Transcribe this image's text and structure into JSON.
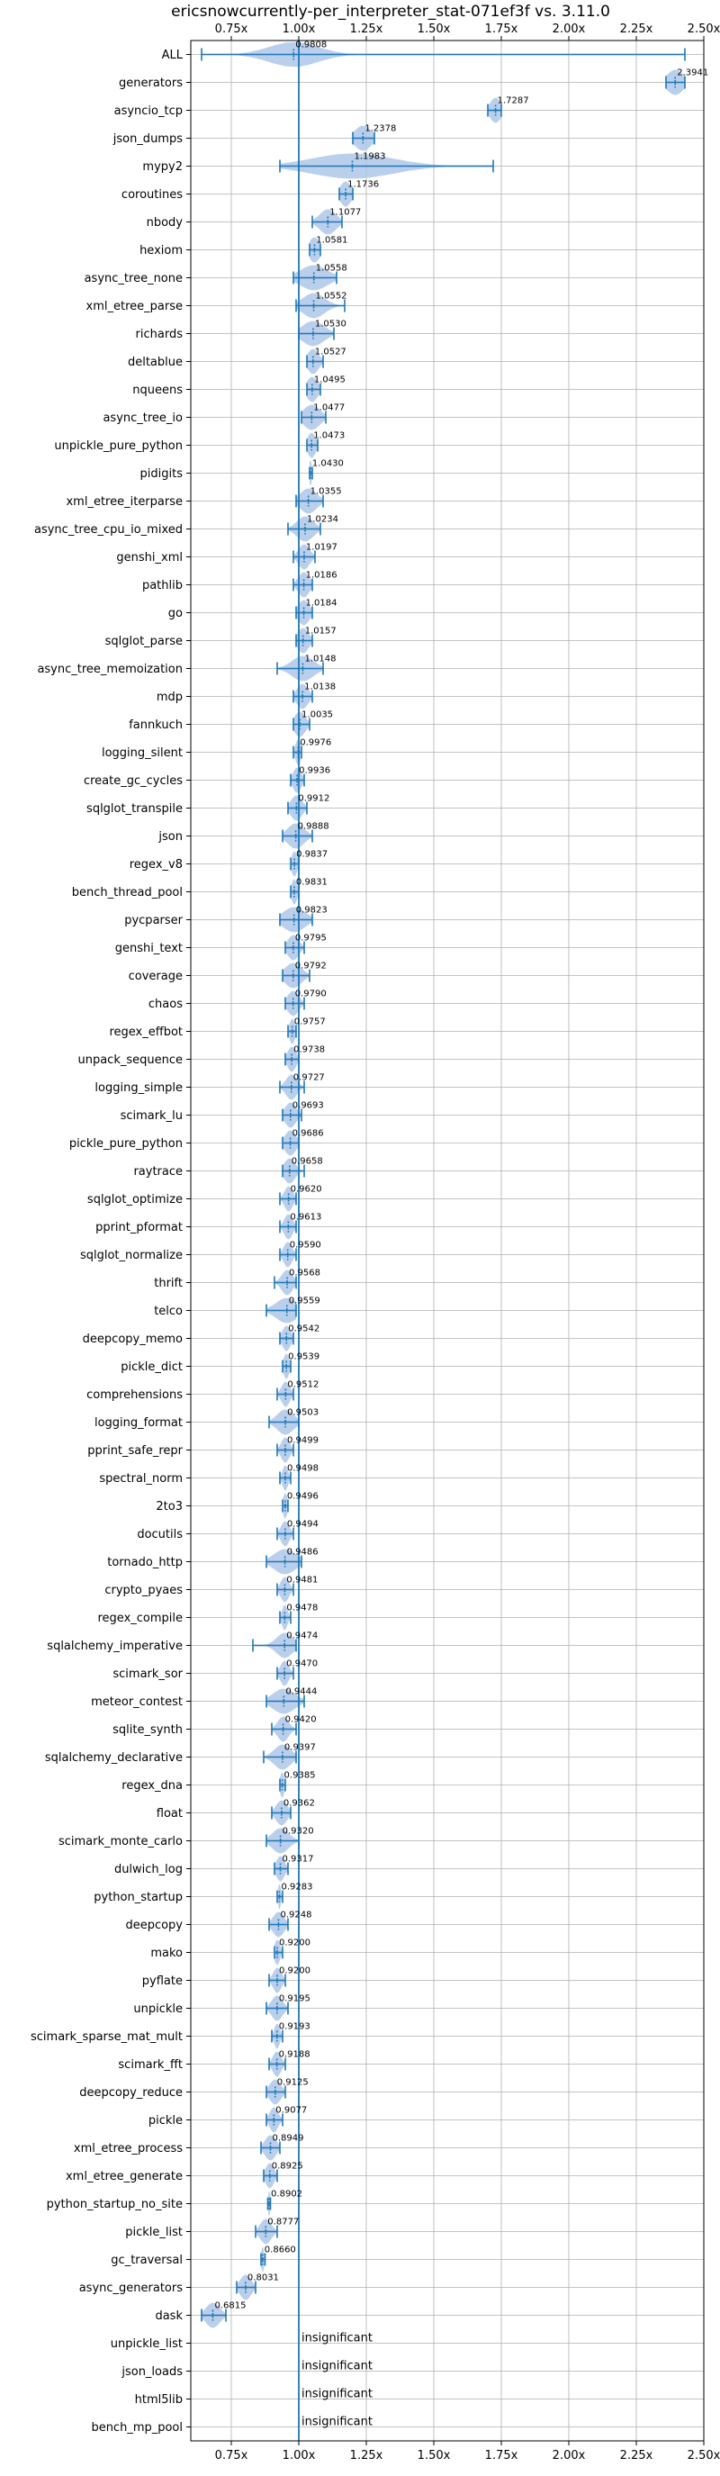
{
  "colors": {
    "accent": "#1f77b4",
    "violin": "#aec7e8",
    "grid": "#b0b0b0",
    "axis": "#000000"
  },
  "chart_data": {
    "type": "violin",
    "title": "ericsnowcurrently-per_interpreter_stat-071ef3f vs. 3.11.0",
    "xlabel": "",
    "ylabel": "",
    "xlim": [
      0.6,
      2.5
    ],
    "xticks": [
      0.75,
      1.0,
      1.25,
      1.5,
      1.75,
      2.0,
      2.25,
      2.5
    ],
    "xtick_labels": [
      "0.75x",
      "1.00x",
      "1.25x",
      "1.50x",
      "1.75x",
      "2.00x",
      "2.25x",
      "2.50x"
    ],
    "reference_line": 1.0,
    "grid": true,
    "insignificant_text": "insignificant",
    "benchmarks": [
      {
        "name": "ALL",
        "value": 0.9808,
        "label": "0.9808",
        "min": 0.64,
        "max": 2.43,
        "spread": 0.09
      },
      {
        "name": "generators",
        "value": 2.3941,
        "label": "2.3941",
        "min": 2.36,
        "max": 2.43,
        "spread": 0.03
      },
      {
        "name": "asyncio_tcp",
        "value": 1.7287,
        "label": "1.7287",
        "min": 1.7,
        "max": 1.75,
        "spread": 0.02
      },
      {
        "name": "json_dumps",
        "value": 1.2378,
        "label": "1.2378",
        "min": 1.2,
        "max": 1.28,
        "spread": 0.03
      },
      {
        "name": "mypy2",
        "value": 1.1983,
        "label": "1.1983",
        "min": 0.93,
        "max": 1.72,
        "spread": 0.15
      },
      {
        "name": "coroutines",
        "value": 1.1736,
        "label": "1.1736",
        "min": 1.15,
        "max": 1.2,
        "spread": 0.02
      },
      {
        "name": "nbody",
        "value": 1.1077,
        "label": "1.1077",
        "min": 1.05,
        "max": 1.16,
        "spread": 0.03
      },
      {
        "name": "hexiom",
        "value": 1.0581,
        "label": "1.0581",
        "min": 1.04,
        "max": 1.08,
        "spread": 0.02
      },
      {
        "name": "async_tree_none",
        "value": 1.0558,
        "label": "1.0558",
        "min": 0.98,
        "max": 1.14,
        "spread": 0.05
      },
      {
        "name": "xml_etree_parse",
        "value": 1.0552,
        "label": "1.0552",
        "min": 0.99,
        "max": 1.17,
        "spread": 0.04
      },
      {
        "name": "richards",
        "value": 1.053,
        "label": "1.0530",
        "min": 1.0,
        "max": 1.13,
        "spread": 0.04
      },
      {
        "name": "deltablue",
        "value": 1.0527,
        "label": "1.0527",
        "min": 1.03,
        "max": 1.09,
        "spread": 0.02
      },
      {
        "name": "nqueens",
        "value": 1.0495,
        "label": "1.0495",
        "min": 1.03,
        "max": 1.08,
        "spread": 0.02
      },
      {
        "name": "async_tree_io",
        "value": 1.0477,
        "label": "1.0477",
        "min": 1.01,
        "max": 1.1,
        "spread": 0.03
      },
      {
        "name": "unpickle_pure_python",
        "value": 1.0473,
        "label": "1.0473",
        "min": 1.03,
        "max": 1.07,
        "spread": 0.015
      },
      {
        "name": "pidigits",
        "value": 1.043,
        "label": "1.0430",
        "min": 1.04,
        "max": 1.05,
        "spread": 0.005
      },
      {
        "name": "xml_etree_iterparse",
        "value": 1.0355,
        "label": "1.0355",
        "min": 0.99,
        "max": 1.09,
        "spread": 0.03
      },
      {
        "name": "async_tree_cpu_io_mixed",
        "value": 1.0234,
        "label": "1.0234",
        "min": 0.96,
        "max": 1.08,
        "spread": 0.03
      },
      {
        "name": "genshi_xml",
        "value": 1.0197,
        "label": "1.0197",
        "min": 0.98,
        "max": 1.06,
        "spread": 0.02
      },
      {
        "name": "pathlib",
        "value": 1.0186,
        "label": "1.0186",
        "min": 0.98,
        "max": 1.05,
        "spread": 0.02
      },
      {
        "name": "go",
        "value": 1.0184,
        "label": "1.0184",
        "min": 0.99,
        "max": 1.05,
        "spread": 0.02
      },
      {
        "name": "sqlglot_parse",
        "value": 1.0157,
        "label": "1.0157",
        "min": 0.99,
        "max": 1.05,
        "spread": 0.02
      },
      {
        "name": "async_tree_memoization",
        "value": 1.0148,
        "label": "1.0148",
        "min": 0.92,
        "max": 1.09,
        "spread": 0.04
      },
      {
        "name": "mdp",
        "value": 1.0138,
        "label": "1.0138",
        "min": 0.98,
        "max": 1.05,
        "spread": 0.02
      },
      {
        "name": "fannkuch",
        "value": 1.0035,
        "label": "1.0035",
        "min": 0.98,
        "max": 1.04,
        "spread": 0.02
      },
      {
        "name": "logging_silent",
        "value": 0.9976,
        "label": "0.9976",
        "min": 0.98,
        "max": 1.01,
        "spread": 0.01
      },
      {
        "name": "create_gc_cycles",
        "value": 0.9936,
        "label": "0.9936",
        "min": 0.97,
        "max": 1.02,
        "spread": 0.015
      },
      {
        "name": "sqlglot_transpile",
        "value": 0.9912,
        "label": "0.9912",
        "min": 0.96,
        "max": 1.03,
        "spread": 0.02
      },
      {
        "name": "json",
        "value": 0.9888,
        "label": "0.9888",
        "min": 0.94,
        "max": 1.05,
        "spread": 0.03
      },
      {
        "name": "regex_v8",
        "value": 0.9837,
        "label": "0.9837",
        "min": 0.97,
        "max": 1.0,
        "spread": 0.01
      },
      {
        "name": "bench_thread_pool",
        "value": 0.9831,
        "label": "0.9831",
        "min": 0.97,
        "max": 1.0,
        "spread": 0.01
      },
      {
        "name": "pycparser",
        "value": 0.9823,
        "label": "0.9823",
        "min": 0.93,
        "max": 1.05,
        "spread": 0.04
      },
      {
        "name": "genshi_text",
        "value": 0.9795,
        "label": "0.9795",
        "min": 0.95,
        "max": 1.02,
        "spread": 0.02
      },
      {
        "name": "coverage",
        "value": 0.9792,
        "label": "0.9792",
        "min": 0.94,
        "max": 1.04,
        "spread": 0.03
      },
      {
        "name": "chaos",
        "value": 0.979,
        "label": "0.9790",
        "min": 0.95,
        "max": 1.02,
        "spread": 0.02
      },
      {
        "name": "regex_effbot",
        "value": 0.9757,
        "label": "0.9757",
        "min": 0.96,
        "max": 0.99,
        "spread": 0.01
      },
      {
        "name": "unpack_sequence",
        "value": 0.9738,
        "label": "0.9738",
        "min": 0.95,
        "max": 1.0,
        "spread": 0.015
      },
      {
        "name": "logging_simple",
        "value": 0.9727,
        "label": "0.9727",
        "min": 0.93,
        "max": 1.02,
        "spread": 0.02
      },
      {
        "name": "scimark_lu",
        "value": 0.9693,
        "label": "0.9693",
        "min": 0.94,
        "max": 1.01,
        "spread": 0.02
      },
      {
        "name": "pickle_pure_python",
        "value": 0.9686,
        "label": "0.9686",
        "min": 0.94,
        "max": 1.0,
        "spread": 0.02
      },
      {
        "name": "raytrace",
        "value": 0.9658,
        "label": "0.9658",
        "min": 0.94,
        "max": 1.02,
        "spread": 0.02
      },
      {
        "name": "sqlglot_optimize",
        "value": 0.962,
        "label": "0.9620",
        "min": 0.93,
        "max": 0.99,
        "spread": 0.015
      },
      {
        "name": "pprint_pformat",
        "value": 0.9613,
        "label": "0.9613",
        "min": 0.93,
        "max": 0.99,
        "spread": 0.015
      },
      {
        "name": "sqlglot_normalize",
        "value": 0.959,
        "label": "0.9590",
        "min": 0.93,
        "max": 0.99,
        "spread": 0.015
      },
      {
        "name": "thrift",
        "value": 0.9568,
        "label": "0.9568",
        "min": 0.91,
        "max": 0.99,
        "spread": 0.02
      },
      {
        "name": "telco",
        "value": 0.9559,
        "label": "0.9559",
        "min": 0.88,
        "max": 0.99,
        "spread": 0.04
      },
      {
        "name": "deepcopy_memo",
        "value": 0.9542,
        "label": "0.9542",
        "min": 0.93,
        "max": 0.98,
        "spread": 0.015
      },
      {
        "name": "pickle_dict",
        "value": 0.9539,
        "label": "0.9539",
        "min": 0.94,
        "max": 0.97,
        "spread": 0.01
      },
      {
        "name": "comprehensions",
        "value": 0.9512,
        "label": "0.9512",
        "min": 0.92,
        "max": 0.98,
        "spread": 0.015
      },
      {
        "name": "logging_format",
        "value": 0.9503,
        "label": "0.9503",
        "min": 0.89,
        "max": 1.0,
        "spread": 0.03
      },
      {
        "name": "pprint_safe_repr",
        "value": 0.9499,
        "label": "0.9499",
        "min": 0.92,
        "max": 0.98,
        "spread": 0.015
      },
      {
        "name": "spectral_norm",
        "value": 0.9498,
        "label": "0.9498",
        "min": 0.93,
        "max": 0.97,
        "spread": 0.01
      },
      {
        "name": "2to3",
        "value": 0.9496,
        "label": "0.9496",
        "min": 0.94,
        "max": 0.96,
        "spread": 0.008
      },
      {
        "name": "docutils",
        "value": 0.9494,
        "label": "0.9494",
        "min": 0.92,
        "max": 0.98,
        "spread": 0.015
      },
      {
        "name": "tornado_http",
        "value": 0.9486,
        "label": "0.9486",
        "min": 0.88,
        "max": 1.01,
        "spread": 0.04
      },
      {
        "name": "crypto_pyaes",
        "value": 0.9481,
        "label": "0.9481",
        "min": 0.92,
        "max": 0.98,
        "spread": 0.015
      },
      {
        "name": "regex_compile",
        "value": 0.9478,
        "label": "0.9478",
        "min": 0.93,
        "max": 0.97,
        "spread": 0.01
      },
      {
        "name": "sqlalchemy_imperative",
        "value": 0.9474,
        "label": "0.9474",
        "min": 0.83,
        "max": 0.99,
        "spread": 0.03
      },
      {
        "name": "scimark_sor",
        "value": 0.947,
        "label": "0.9470",
        "min": 0.92,
        "max": 0.98,
        "spread": 0.015
      },
      {
        "name": "meteor_contest",
        "value": 0.9444,
        "label": "0.9444",
        "min": 0.88,
        "max": 1.02,
        "spread": 0.04
      },
      {
        "name": "sqlite_synth",
        "value": 0.942,
        "label": "0.9420",
        "min": 0.9,
        "max": 0.99,
        "spread": 0.02
      },
      {
        "name": "sqlalchemy_declarative",
        "value": 0.9397,
        "label": "0.9397",
        "min": 0.87,
        "max": 0.99,
        "spread": 0.03
      },
      {
        "name": "regex_dna",
        "value": 0.9385,
        "label": "0.9385",
        "min": 0.93,
        "max": 0.95,
        "spread": 0.008
      },
      {
        "name": "float",
        "value": 0.9362,
        "label": "0.9362",
        "min": 0.9,
        "max": 0.97,
        "spread": 0.02
      },
      {
        "name": "scimark_monte_carlo",
        "value": 0.932,
        "label": "0.9320",
        "min": 0.88,
        "max": 1.0,
        "spread": 0.03
      },
      {
        "name": "dulwich_log",
        "value": 0.9317,
        "label": "0.9317",
        "min": 0.91,
        "max": 0.96,
        "spread": 0.015
      },
      {
        "name": "python_startup",
        "value": 0.9283,
        "label": "0.9283",
        "min": 0.92,
        "max": 0.94,
        "spread": 0.005
      },
      {
        "name": "deepcopy",
        "value": 0.9248,
        "label": "0.9248",
        "min": 0.89,
        "max": 0.96,
        "spread": 0.02
      },
      {
        "name": "mako",
        "value": 0.92,
        "label": "0.9200",
        "min": 0.91,
        "max": 0.94,
        "spread": 0.01
      },
      {
        "name": "pyflate",
        "value": 0.92,
        "label": "0.9200",
        "min": 0.89,
        "max": 0.95,
        "spread": 0.015
      },
      {
        "name": "unpickle",
        "value": 0.9195,
        "label": "0.9195",
        "min": 0.88,
        "max": 0.96,
        "spread": 0.02
      },
      {
        "name": "scimark_sparse_mat_mult",
        "value": 0.9193,
        "label": "0.9193",
        "min": 0.9,
        "max": 0.94,
        "spread": 0.01
      },
      {
        "name": "scimark_fft",
        "value": 0.9188,
        "label": "0.9188",
        "min": 0.89,
        "max": 0.95,
        "spread": 0.015
      },
      {
        "name": "deepcopy_reduce",
        "value": 0.9125,
        "label": "0.9125",
        "min": 0.88,
        "max": 0.95,
        "spread": 0.02
      },
      {
        "name": "pickle",
        "value": 0.9077,
        "label": "0.9077",
        "min": 0.88,
        "max": 0.94,
        "spread": 0.015
      },
      {
        "name": "xml_etree_process",
        "value": 0.8949,
        "label": "0.8949",
        "min": 0.86,
        "max": 0.93,
        "spread": 0.02
      },
      {
        "name": "xml_etree_generate",
        "value": 0.8925,
        "label": "0.8925",
        "min": 0.87,
        "max": 0.92,
        "spread": 0.015
      },
      {
        "name": "python_startup_no_site",
        "value": 0.8902,
        "label": "0.8902",
        "min": 0.885,
        "max": 0.895,
        "spread": 0.004
      },
      {
        "name": "pickle_list",
        "value": 0.8777,
        "label": "0.8777",
        "min": 0.84,
        "max": 0.92,
        "spread": 0.02
      },
      {
        "name": "gc_traversal",
        "value": 0.866,
        "label": "0.8660",
        "min": 0.86,
        "max": 0.875,
        "spread": 0.005
      },
      {
        "name": "async_generators",
        "value": 0.8031,
        "label": "0.8031",
        "min": 0.77,
        "max": 0.84,
        "spread": 0.02
      },
      {
        "name": "dask",
        "value": 0.6815,
        "label": "0.6815",
        "min": 0.64,
        "max": 0.73,
        "spread": 0.025
      },
      {
        "name": "unpickle_list",
        "value": null,
        "label": "",
        "insignificant": true
      },
      {
        "name": "json_loads",
        "value": null,
        "label": "",
        "insignificant": true
      },
      {
        "name": "html5lib",
        "value": null,
        "label": "",
        "insignificant": true
      },
      {
        "name": "bench_mp_pool",
        "value": null,
        "label": "",
        "insignificant": true
      }
    ]
  }
}
